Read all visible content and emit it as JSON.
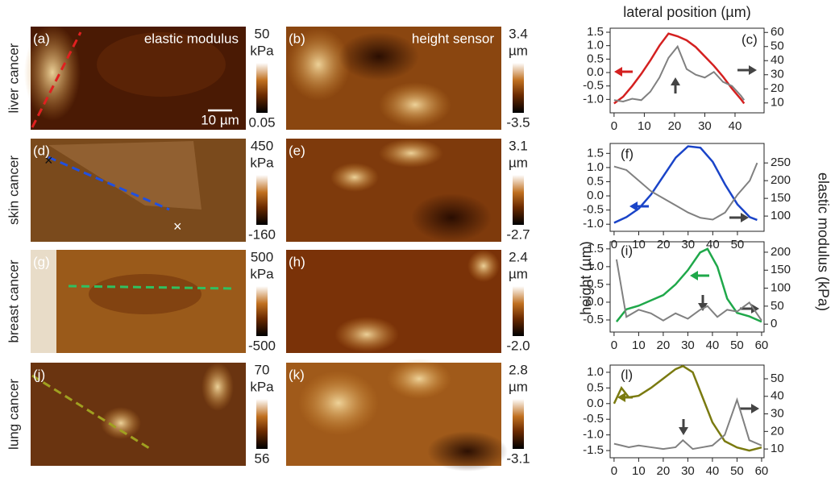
{
  "panels": [
    {
      "row_label": "liver cancer",
      "modulus": {
        "label": "(a)",
        "title": "elastic modulus",
        "top": "50",
        "unit": "kPa",
        "bottom": "0.05",
        "scalebar": "10 µm"
      },
      "height": {
        "label": "(b)",
        "title": "height sensor",
        "top": "3.4",
        "unit": "µm",
        "bottom": "-3.5"
      }
    },
    {
      "row_label": "skin cancer",
      "modulus": {
        "label": "(d)",
        "top": "450",
        "unit": "kPa",
        "bottom": "-160"
      },
      "height": {
        "label": "(e)",
        "top": "3.1",
        "unit": "µm",
        "bottom": "-2.7"
      }
    },
    {
      "row_label": "breast cancer",
      "modulus": {
        "label": "(g)",
        "top": "500",
        "unit": "kPa",
        "bottom": "-500"
      },
      "height": {
        "label": "(h)",
        "top": "2.4",
        "unit": "µm",
        "bottom": "-2.0"
      }
    },
    {
      "row_label": "lung cancer",
      "modulus": {
        "label": "(j)",
        "top": "70",
        "unit": "kPa",
        "bottom": "56"
      },
      "height": {
        "label": "(k)",
        "top": "2.8",
        "unit": "µm",
        "bottom": "-3.1"
      }
    }
  ],
  "chart_data": [
    {
      "type": "line",
      "label": "(c)",
      "xlabel": "lateral position (µm)",
      "x": [
        0,
        3,
        6,
        9,
        12,
        15,
        18,
        21,
        24,
        27,
        30,
        33,
        36,
        39,
        42,
        43
      ],
      "series": [
        {
          "color": "#d42020",
          "values": [
            -1.15,
            -0.9,
            -0.5,
            -0.05,
            0.45,
            1.0,
            1.45,
            1.35,
            1.2,
            0.95,
            0.6,
            0.25,
            -0.15,
            -0.6,
            -1.0,
            -1.15
          ]
        },
        {
          "color": "#808080",
          "axis": "y2",
          "values": [
            12,
            11,
            13,
            12,
            18,
            28,
            42,
            50,
            34,
            30,
            28,
            32,
            25,
            22,
            15,
            12
          ]
        }
      ],
      "xlim": [
        -1.3,
        49.6
      ],
      "xticks": [
        0,
        10,
        20,
        30,
        40
      ],
      "ylim": [
        -1.5,
        1.65
      ],
      "yticks": [
        {
          "value": -1,
          "label": "-1.0"
        },
        -0.5,
        {
          "value": 0,
          "label": "0.0"
        },
        0.5,
        {
          "value": 1,
          "label": "1.0"
        },
        1.5
      ],
      "y2lim": [
        3,
        63
      ],
      "y2ticks": [
        10,
        20,
        30,
        40,
        50,
        60
      ]
    },
    {
      "type": "line",
      "label": "(f)",
      "x": [
        0,
        5,
        10,
        15,
        20,
        25,
        30,
        35,
        40,
        45,
        50,
        55,
        58
      ],
      "series": [
        {
          "color": "#1a44c8",
          "values": [
            -0.95,
            -0.75,
            -0.45,
            0.05,
            0.7,
            1.35,
            1.75,
            1.7,
            1.2,
            0.4,
            -0.3,
            -0.75,
            -0.85
          ]
        },
        {
          "color": "#808080",
          "axis": "y2",
          "values": [
            240,
            230,
            200,
            170,
            150,
            130,
            110,
            95,
            90,
            110,
            160,
            200,
            250
          ]
        }
      ],
      "xlim": [
        -1.6,
        60.8
      ],
      "xticks": [
        0,
        10,
        20,
        30,
        40,
        50
      ],
      "ylim": [
        -1.25,
        1.85
      ],
      "yticks": [
        {
          "value": -1,
          "label": "-1.0"
        },
        -0.5,
        {
          "value": 0,
          "label": "0.0"
        },
        0.5,
        {
          "value": 1,
          "label": "1.0"
        },
        1.5
      ],
      "y2lim": [
        57,
        305
      ],
      "y2ticks": [
        100,
        150,
        200,
        250
      ]
    },
    {
      "type": "line",
      "label": "(i)",
      "ylabel": "height (µm)",
      "y2label": "elastic modulus (kPa)",
      "x": [
        1,
        5,
        10,
        15,
        20,
        25,
        30,
        35,
        38,
        42,
        46,
        50,
        55,
        60
      ],
      "series": [
        {
          "color": "#1fa84a",
          "values": [
            -0.55,
            -0.2,
            -0.1,
            0.05,
            0.2,
            0.5,
            0.9,
            1.4,
            1.5,
            1.0,
            0.1,
            -0.3,
            -0.4,
            -0.55
          ]
        },
        {
          "color": "#808080",
          "axis": "y2",
          "values": [
            180,
            20,
            40,
            30,
            10,
            30,
            15,
            40,
            50,
            20,
            40,
            35,
            60,
            10
          ]
        }
      ],
      "xlim": [
        -1.6,
        61
      ],
      "xticks": [
        0,
        10,
        20,
        30,
        40,
        50,
        60
      ],
      "ylim": [
        -0.84,
        1.7
      ],
      "yticks": [
        -0.5,
        {
          "value": 0,
          "label": "0.0"
        },
        0.5,
        {
          "value": 1,
          "label": "1.0"
        },
        1.5
      ],
      "y2lim": [
        -22,
        229
      ],
      "y2ticks": [
        0,
        50,
        100,
        150,
        200
      ]
    },
    {
      "type": "line",
      "label": "(l)",
      "x": [
        0,
        3,
        6,
        10,
        15,
        20,
        25,
        28,
        32,
        36,
        40,
        45,
        50,
        55,
        60
      ],
      "series": [
        {
          "color": "#7a7a10",
          "values": [
            0.0,
            0.5,
            0.2,
            0.25,
            0.5,
            0.8,
            1.1,
            1.2,
            1.0,
            0.2,
            -0.6,
            -1.2,
            -1.4,
            -1.5,
            -1.4
          ]
        },
        {
          "color": "#808080",
          "axis": "y2",
          "values": [
            13,
            12,
            11,
            12,
            11,
            10,
            11,
            15,
            10,
            11,
            12,
            18,
            38,
            15,
            12
          ]
        }
      ],
      "xlim": [
        -1.6,
        61
      ],
      "xticks": [
        0,
        10,
        20,
        30,
        40,
        50,
        60
      ],
      "ylim": [
        -1.73,
        1.23
      ],
      "yticks": [
        -1.5,
        {
          "value": -1,
          "label": "-1.0"
        },
        -0.5,
        {
          "value": 0,
          "label": "0.0"
        },
        0.5,
        {
          "value": 1,
          "label": "1.0"
        }
      ],
      "y2lim": [
        5,
        57.8
      ],
      "y2ticks": [
        10,
        20,
        30,
        40,
        50
      ]
    }
  ]
}
